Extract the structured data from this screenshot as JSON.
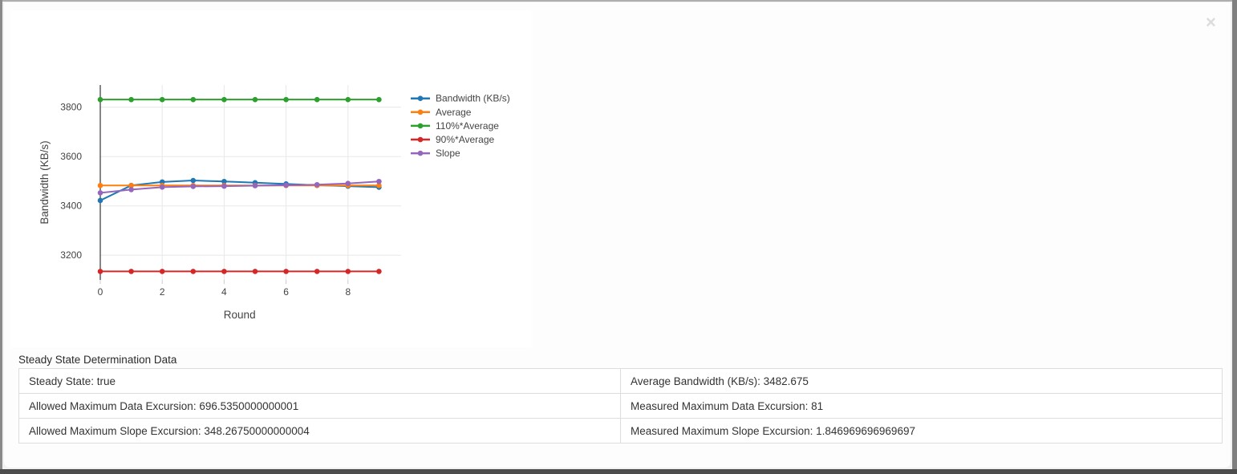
{
  "modal": {
    "close_label": "×"
  },
  "section": {
    "title": "Steady State Determination Data"
  },
  "table": {
    "rows": [
      [
        "Steady State: true",
        "Average Bandwidth (KB/s): 3482.675"
      ],
      [
        "Allowed Maximum Data Excursion: 696.5350000000001",
        "Measured Maximum Data Excursion: 81"
      ],
      [
        "Allowed Maximum Slope Excursion: 348.26750000000004",
        "Measured Maximum Slope Excursion: 1.846969696969697"
      ]
    ]
  },
  "chart_data": {
    "type": "line",
    "x": [
      0,
      1,
      2,
      3,
      4,
      5,
      6,
      7,
      8,
      9
    ],
    "series": [
      {
        "name": "Bandwidth (KB/s)",
        "color": "#1f77b4",
        "values": [
          3422,
          3483,
          3497,
          3503,
          3499,
          3494,
          3489,
          3484,
          3480,
          3475.75
        ]
      },
      {
        "name": "Average",
        "color": "#ff7f0e",
        "values": [
          3482.675,
          3482.675,
          3482.675,
          3482.675,
          3482.675,
          3482.675,
          3482.675,
          3482.675,
          3482.675,
          3482.675
        ]
      },
      {
        "name": "110%*Average",
        "color": "#2ca02c",
        "values": [
          3830.9425,
          3830.9425,
          3830.9425,
          3830.9425,
          3830.9425,
          3830.9425,
          3830.9425,
          3830.9425,
          3830.9425,
          3830.9425
        ]
      },
      {
        "name": "90%*Average",
        "color": "#d62728",
        "values": [
          3134.4075,
          3134.4075,
          3134.4075,
          3134.4075,
          3134.4075,
          3134.4075,
          3134.4075,
          3134.4075,
          3134.4075,
          3134.4075
        ]
      },
      {
        "name": "Slope",
        "color": "#9467bd",
        "values": [
          3453,
          3466,
          3476,
          3479,
          3480,
          3482,
          3484,
          3486,
          3491,
          3499
        ]
      }
    ],
    "title": "",
    "xlabel": "Round",
    "ylabel": "Bandwidth (KB/s)",
    "xlim": [
      0,
      9.715
    ],
    "ylim": [
      3100,
      3890
    ],
    "xticks": [
      0,
      2,
      4,
      6,
      8
    ],
    "yticks": [
      3200,
      3400,
      3600,
      3800
    ],
    "grid": true,
    "legend_position": "right",
    "colors": {
      "grid": "#e8e8e8",
      "axis_line": "#444444",
      "tick_mark": "#cccccc",
      "tick_text": "#444444",
      "axis_title_text": "#444444",
      "legend_text": "#444444"
    }
  }
}
